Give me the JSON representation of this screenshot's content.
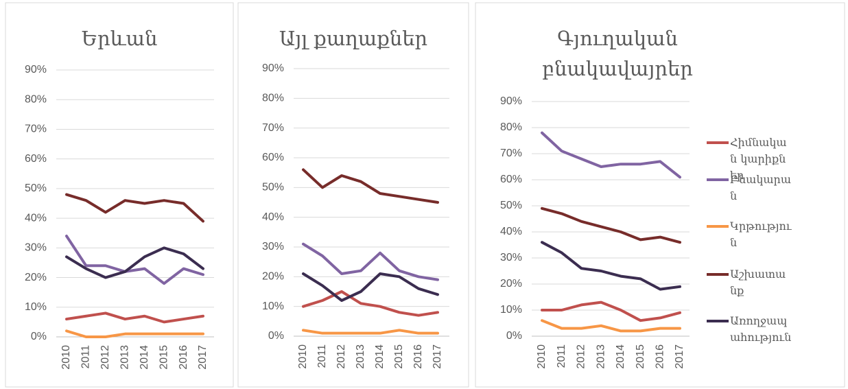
{
  "chart_data": [
    {
      "type": "line",
      "title": "Երևան",
      "categories": [
        "2010",
        "2011",
        "2012",
        "2013",
        "2014",
        "2015",
        "2016",
        "2017"
      ],
      "ylim": [
        0,
        90
      ],
      "yticks": [
        {
          "value": 0,
          "label": "0%"
        },
        {
          "value": 10,
          "label": "10%"
        },
        {
          "value": 20,
          "label": "20%"
        },
        {
          "value": 30,
          "label": "30%"
        },
        {
          "value": 40,
          "label": "40%"
        },
        {
          "value": 50,
          "label": "50%"
        },
        {
          "value": 60,
          "label": "60%"
        },
        {
          "value": 70,
          "label": "70%"
        },
        {
          "value": 80,
          "label": "80%"
        },
        {
          "value": 90,
          "label": "90%"
        }
      ],
      "grid": true,
      "series": [
        {
          "color": "#c0504d",
          "values": [
            6,
            7,
            8,
            6,
            7,
            5,
            6,
            7
          ]
        },
        {
          "color": "#8064a2",
          "values": [
            34,
            24,
            24,
            22,
            23,
            18,
            23,
            21
          ]
        },
        {
          "color": "#f79646",
          "values": [
            2,
            0,
            0,
            1,
            1,
            1,
            1,
            1
          ]
        },
        {
          "color": "#772c2a",
          "values": [
            48,
            46,
            42,
            46,
            45,
            46,
            45,
            39
          ]
        },
        {
          "color": "#3b2d50",
          "values": [
            27,
            23,
            20,
            22,
            27,
            30,
            28,
            23
          ]
        }
      ]
    },
    {
      "type": "line",
      "title": "Այլ քաղաքներ",
      "categories": [
        "2010",
        "2011",
        "2012",
        "2013",
        "2014",
        "2015",
        "2016",
        "2017"
      ],
      "ylim": [
        0,
        90
      ],
      "yticks": [
        {
          "value": 0,
          "label": "0%"
        },
        {
          "value": 10,
          "label": "10%"
        },
        {
          "value": 20,
          "label": "20%"
        },
        {
          "value": 30,
          "label": "30%"
        },
        {
          "value": 40,
          "label": "40%"
        },
        {
          "value": 50,
          "label": "50%"
        },
        {
          "value": 60,
          "label": "60%"
        },
        {
          "value": 70,
          "label": "70%"
        },
        {
          "value": 80,
          "label": "80%"
        },
        {
          "value": 90,
          "label": "90%"
        }
      ],
      "grid": true,
      "series": [
        {
          "color": "#c0504d",
          "values": [
            10,
            12,
            15,
            11,
            10,
            8,
            7,
            8
          ]
        },
        {
          "color": "#8064a2",
          "values": [
            31,
            27,
            21,
            22,
            28,
            22,
            20,
            19
          ]
        },
        {
          "color": "#f79646",
          "values": [
            2,
            1,
            1,
            1,
            1,
            2,
            1,
            1
          ]
        },
        {
          "color": "#772c2a",
          "values": [
            56,
            50,
            54,
            52,
            48,
            47,
            46,
            45
          ]
        },
        {
          "color": "#3b2d50",
          "values": [
            21,
            17,
            12,
            15,
            21,
            20,
            16,
            14
          ]
        }
      ]
    },
    {
      "type": "line",
      "title": "Գյուղական բնակավայրեր",
      "categories": [
        "2010",
        "2011",
        "2012",
        "2013",
        "2014",
        "2015",
        "2016",
        "2017"
      ],
      "ylim": [
        0,
        90
      ],
      "yticks": [
        {
          "value": 0,
          "label": "0%"
        },
        {
          "value": 10,
          "label": "10%"
        },
        {
          "value": 20,
          "label": "20%"
        },
        {
          "value": 30,
          "label": "30%"
        },
        {
          "value": 40,
          "label": "40%"
        },
        {
          "value": 50,
          "label": "50%"
        },
        {
          "value": 60,
          "label": "60%"
        },
        {
          "value": 70,
          "label": "70%"
        },
        {
          "value": 80,
          "label": "80%"
        },
        {
          "value": 90,
          "label": "90%"
        }
      ],
      "grid": true,
      "legend": "right",
      "series": [
        {
          "name": "Հիմնական կարիքներ",
          "color": "#c0504d",
          "values": [
            10,
            10,
            12,
            13,
            10,
            6,
            7,
            9
          ]
        },
        {
          "name": "Բնակարան",
          "color": "#8064a2",
          "values": [
            78,
            71,
            68,
            65,
            66,
            66,
            67,
            61
          ]
        },
        {
          "name": "Կրթություն",
          "color": "#f79646",
          "values": [
            6,
            3,
            3,
            4,
            2,
            2,
            3,
            3
          ]
        },
        {
          "name": "Աշխատանք",
          "color": "#772c2a",
          "values": [
            49,
            47,
            44,
            42,
            40,
            37,
            38,
            36
          ]
        },
        {
          "name": "Առողջապահություն",
          "color": "#3b2d50",
          "values": [
            36,
            32,
            26,
            25,
            23,
            22,
            18,
            19
          ]
        }
      ]
    }
  ]
}
